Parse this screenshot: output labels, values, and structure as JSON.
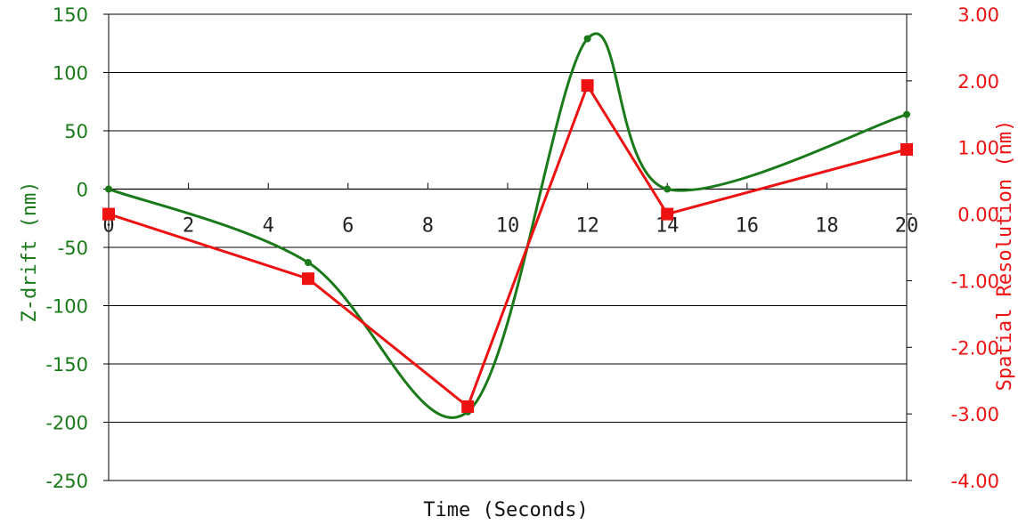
{
  "chart_data": {
    "type": "line",
    "xlabel": "Time (Seconds)",
    "ylabel_left": "Z-drift (nm)",
    "ylabel_right": "Spatial Resolution (nm)",
    "xlim": [
      0,
      20
    ],
    "x_ticks": [
      "0",
      "2",
      "4",
      "6",
      "8",
      "10",
      "12",
      "14",
      "16",
      "18",
      "20"
    ],
    "ylim_left": [
      -250,
      150
    ],
    "y_ticks_left": [
      "150",
      "100",
      "50",
      "0",
      "-50",
      "-100",
      "-150",
      "-200",
      "-250"
    ],
    "ylim_right": [
      -4,
      3
    ],
    "y_ticks_right": [
      "3.00",
      "2.00",
      "1.00",
      "0.00",
      "-1.00",
      "-2.00",
      "-3.00",
      "-4.00"
    ],
    "grid": true,
    "series": [
      {
        "axis": "left",
        "color": "#1a7a1a",
        "marker": "circle",
        "smooth": true,
        "x": [
          0,
          5,
          9,
          12,
          14,
          20
        ],
        "y": [
          0,
          -63,
          -191,
          129,
          0,
          64
        ]
      },
      {
        "axis": "right",
        "color": "#ee1111",
        "marker": "square",
        "smooth": false,
        "x": [
          0,
          5,
          9,
          12,
          14,
          20
        ],
        "y": [
          0.0,
          -0.97,
          -2.89,
          1.93,
          0.0,
          0.97
        ]
      }
    ]
  }
}
